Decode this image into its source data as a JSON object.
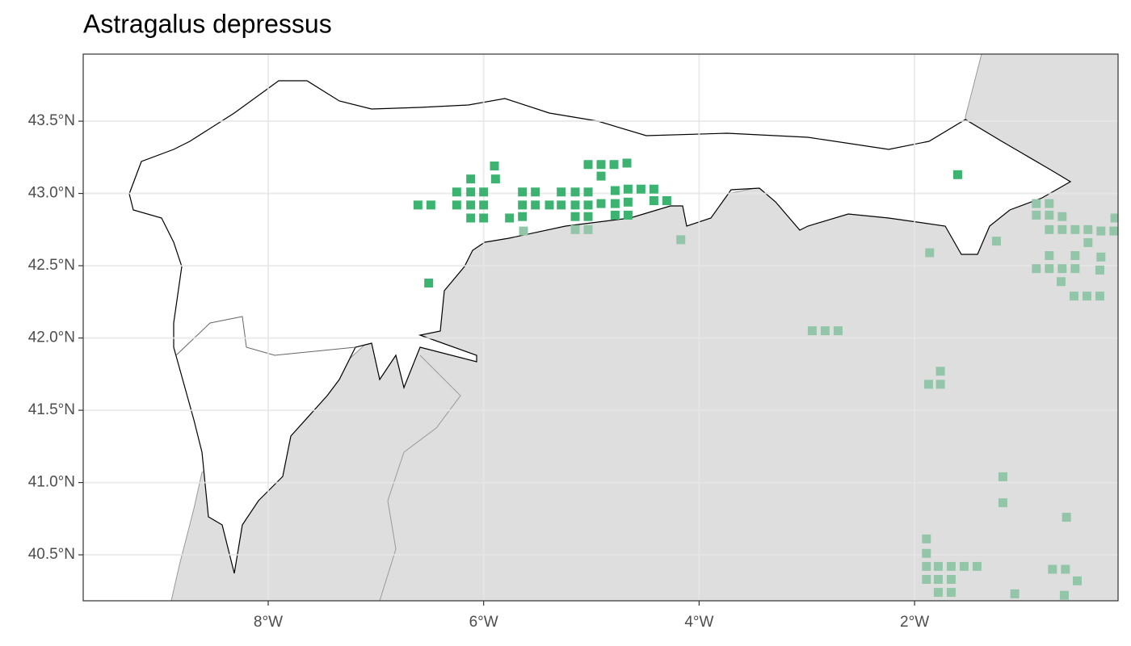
{
  "chart_data": {
    "type": "map",
    "title": "Astragalus depressus",
    "xlim": [
      -9.717,
      -0.111
    ],
    "ylim": [
      40.182,
      43.964
    ],
    "xticks": [
      {
        "value": -8,
        "label": "8°W"
      },
      {
        "value": -6,
        "label": "6°W"
      },
      {
        "value": -4,
        "label": "4°W"
      },
      {
        "value": -2,
        "label": "2°W"
      }
    ],
    "yticks": [
      {
        "value": 40.5,
        "label": "40.5°N"
      },
      {
        "value": 41,
        "label": "41.0°N"
      },
      {
        "value": 41.5,
        "label": "41.5°N"
      },
      {
        "value": 42,
        "label": "42.0°N"
      },
      {
        "value": 42.5,
        "label": "42.5°N"
      },
      {
        "value": 43,
        "label": "43.0°N"
      },
      {
        "value": 43.5,
        "label": "43.5°N"
      }
    ],
    "grid": true,
    "series": [
      {
        "color": "#93c6a9",
        "x": [
          -5.63,
          -5.15,
          -5.03,
          -4.17,
          -1.86,
          -1.24,
          -2.95,
          -2.83,
          -2.71,
          -1.76,
          -1.87,
          -1.76,
          -1.18,
          -1.18,
          -0.59,
          -1.89,
          -1.89,
          -1.89,
          -1.78,
          -1.66,
          -1.54,
          -1.42,
          -1.89,
          -1.78,
          -1.66,
          -1.78,
          -1.66,
          -1.07,
          -0.72,
          -0.6,
          -0.49,
          -0.61,
          -0.87,
          -0.75,
          -0.87,
          -0.75,
          -0.63,
          -0.75,
          -0.63,
          -0.51,
          -0.39,
          -0.27,
          -0.15,
          -0.14,
          -0.39,
          -0.75,
          -0.51,
          -0.27,
          -0.87,
          -0.75,
          -0.63,
          -0.51,
          -0.28,
          -0.64,
          -0.52,
          -0.4,
          -0.28
        ],
        "values": [
          42.74,
          42.75,
          42.75,
          42.68,
          42.59,
          42.67,
          42.05,
          42.05,
          42.05,
          41.77,
          41.68,
          41.68,
          41.04,
          40.86,
          40.76,
          40.61,
          40.51,
          40.42,
          40.42,
          40.42,
          40.42,
          40.42,
          40.33,
          40.33,
          40.33,
          40.24,
          40.24,
          40.23,
          40.4,
          40.4,
          40.32,
          40.22,
          42.93,
          42.93,
          42.85,
          42.85,
          42.84,
          42.75,
          42.75,
          42.75,
          42.75,
          42.74,
          42.74,
          42.83,
          42.66,
          42.57,
          42.57,
          42.56,
          42.48,
          42.48,
          42.48,
          42.48,
          42.47,
          42.39,
          42.29,
          42.29,
          42.29
        ]
      },
      {
        "color": "#3cb371",
        "x": [
          -6.61,
          -6.49,
          -6.25,
          -6.12,
          -6.12,
          -6.0,
          -6.25,
          -6.12,
          -6.0,
          -6.12,
          -6.0,
          -5.9,
          -5.89,
          -5.76,
          -5.64,
          -5.52,
          -5.64,
          -5.52,
          -5.39,
          -5.28,
          -5.15,
          -5.03,
          -5.28,
          -5.15,
          -5.03,
          -5.15,
          -5.03,
          -5.64,
          -5.03,
          -4.91,
          -4.79,
          -4.67,
          -4.91,
          -4.91,
          -4.78,
          -4.66,
          -4.54,
          -4.42,
          -4.78,
          -4.66,
          -4.42,
          -4.3,
          -4.78,
          -4.66,
          -6.51,
          -1.6
        ],
        "values": [
          42.92,
          42.92,
          43.01,
          43.1,
          43.01,
          43.01,
          42.92,
          42.92,
          42.92,
          42.83,
          42.83,
          43.19,
          43.1,
          42.83,
          43.01,
          43.01,
          42.92,
          42.92,
          42.92,
          43.01,
          43.01,
          43.01,
          42.92,
          42.92,
          42.92,
          42.84,
          42.84,
          42.84,
          43.2,
          43.2,
          43.2,
          43.21,
          43.12,
          42.93,
          43.02,
          43.03,
          43.03,
          43.03,
          42.93,
          42.94,
          42.95,
          42.95,
          42.85,
          42.85,
          42.38,
          43.13
        ]
      }
    ]
  }
}
